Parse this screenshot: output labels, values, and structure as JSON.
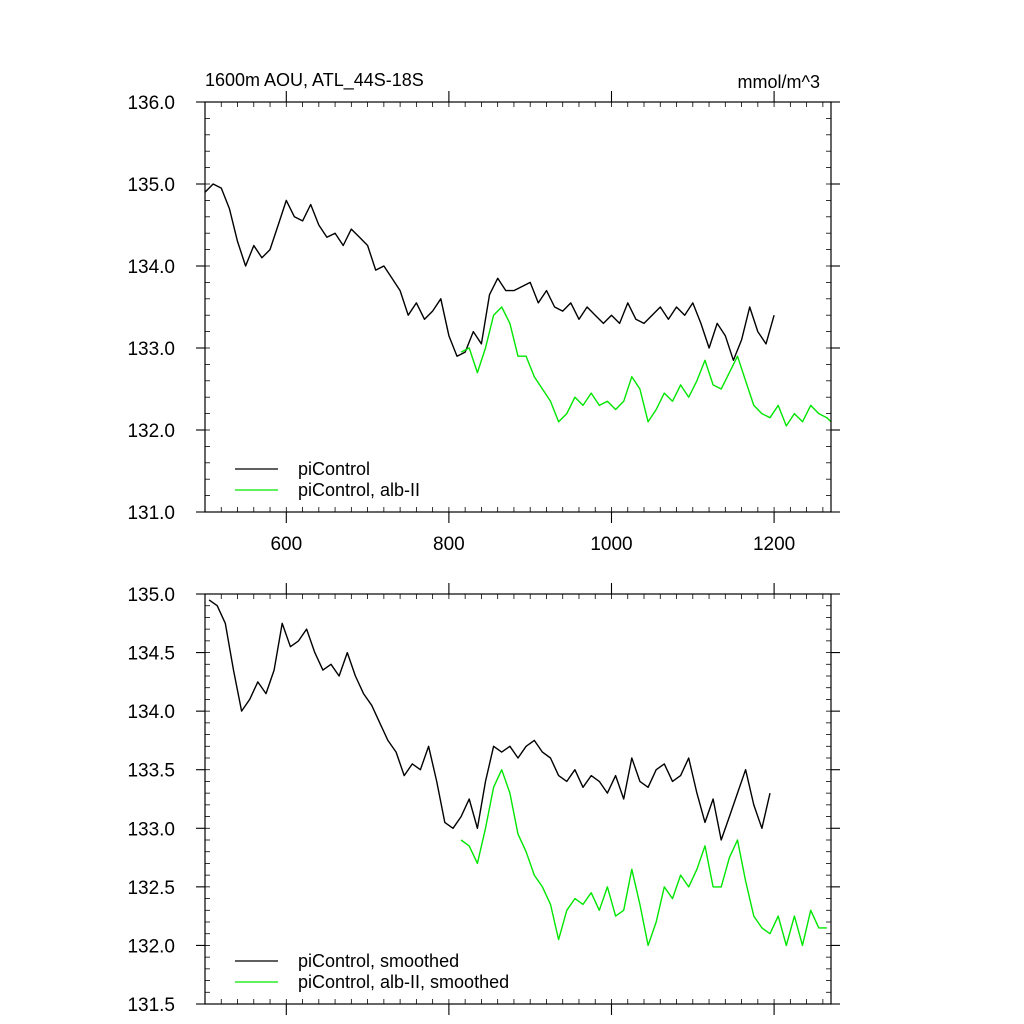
{
  "colors": {
    "black_series": "#000000",
    "green_series": "#00e600",
    "axis": "#000000",
    "background": "#ffffff"
  },
  "chart_data": [
    {
      "type": "line",
      "title": "1600m AOU, ATL_44S-18S",
      "units_label": "mmol/m^3",
      "xlabel": "",
      "ylabel": "",
      "xlim": [
        500,
        1270
      ],
      "ylim": [
        131.0,
        136.0
      ],
      "xticks": [
        600,
        800,
        1000,
        1200
      ],
      "xtick_labels": [
        "600",
        "800",
        "1000",
        "1200"
      ],
      "yticks": [
        131.0,
        132.0,
        133.0,
        134.0,
        135.0,
        136.0
      ],
      "ytick_labels": [
        "131.0",
        "132.0",
        "133.0",
        "134.0",
        "135.0",
        "136.0"
      ],
      "grid": false,
      "legend_position": "bottom-left",
      "series": [
        {
          "name": "piControl",
          "color": "#000000",
          "x": [
            500,
            510,
            520,
            530,
            540,
            550,
            560,
            570,
            580,
            590,
            600,
            610,
            620,
            630,
            640,
            650,
            660,
            670,
            680,
            690,
            700,
            710,
            720,
            730,
            740,
            750,
            760,
            770,
            780,
            790,
            800,
            810,
            820,
            830,
            840,
            850,
            860,
            870,
            880,
            890,
            900,
            910,
            920,
            930,
            940,
            950,
            960,
            970,
            980,
            990,
            1000,
            1010,
            1020,
            1030,
            1040,
            1050,
            1060,
            1070,
            1080,
            1090,
            1100,
            1110,
            1120,
            1130,
            1140,
            1150,
            1160,
            1170,
            1180,
            1190,
            1200
          ],
          "y": [
            134.9,
            135.0,
            134.95,
            134.7,
            134.3,
            134.0,
            134.25,
            134.1,
            134.2,
            134.5,
            134.8,
            134.6,
            134.55,
            134.75,
            134.5,
            134.35,
            134.4,
            134.25,
            134.45,
            134.35,
            134.25,
            133.95,
            134.0,
            133.85,
            133.7,
            133.4,
            133.55,
            133.35,
            133.45,
            133.6,
            133.15,
            132.9,
            132.95,
            133.2,
            133.05,
            133.65,
            133.85,
            133.7,
            133.7,
            133.75,
            133.8,
            133.55,
            133.7,
            133.5,
            133.45,
            133.55,
            133.35,
            133.5,
            133.4,
            133.3,
            133.4,
            133.3,
            133.55,
            133.35,
            133.3,
            133.4,
            133.5,
            133.35,
            133.5,
            133.4,
            133.55,
            133.3,
            133.0,
            133.3,
            133.15,
            132.85,
            133.1,
            133.5,
            133.2,
            133.05,
            133.4
          ],
          "values_note": ""
        },
        {
          "name": "piControl, alb-II",
          "color": "#00e600",
          "x": [
            815,
            825,
            835,
            845,
            855,
            865,
            875,
            885,
            895,
            905,
            915,
            925,
            935,
            945,
            955,
            965,
            975,
            985,
            995,
            1005,
            1015,
            1025,
            1035,
            1045,
            1055,
            1065,
            1075,
            1085,
            1095,
            1105,
            1115,
            1125,
            1135,
            1145,
            1155,
            1165,
            1175,
            1185,
            1195,
            1205,
            1215,
            1225,
            1235,
            1245,
            1255,
            1265,
            1270
          ],
          "y": [
            132.95,
            133.0,
            132.7,
            133.0,
            133.4,
            133.5,
            133.3,
            132.9,
            132.9,
            132.65,
            132.5,
            132.35,
            132.1,
            132.2,
            132.4,
            132.3,
            132.45,
            132.3,
            132.35,
            132.25,
            132.35,
            132.65,
            132.5,
            132.1,
            132.25,
            132.45,
            132.35,
            132.55,
            132.4,
            132.6,
            132.85,
            132.55,
            132.5,
            132.7,
            132.9,
            132.6,
            132.3,
            132.2,
            132.15,
            132.3,
            132.05,
            132.2,
            132.1,
            132.3,
            132.2,
            132.15,
            132.1
          ]
        }
      ]
    },
    {
      "type": "line",
      "title": "",
      "xlabel": "",
      "ylabel": "",
      "xlim": [
        500,
        1270
      ],
      "ylim": [
        131.5,
        135.0
      ],
      "xticks": [
        600,
        800,
        1000,
        1200
      ],
      "yticks": [
        131.5,
        132.0,
        132.5,
        133.0,
        133.5,
        134.0,
        134.5,
        135.0
      ],
      "ytick_labels": [
        "131.5",
        "132.0",
        "132.5",
        "133.0",
        "133.5",
        "134.0",
        "134.5",
        "135.0"
      ],
      "grid": false,
      "legend_position": "bottom-left",
      "series": [
        {
          "name": "piControl, smoothed",
          "color": "#000000",
          "x": [
            505,
            515,
            525,
            535,
            545,
            555,
            565,
            575,
            585,
            595,
            605,
            615,
            625,
            635,
            645,
            655,
            665,
            675,
            685,
            695,
            705,
            715,
            725,
            735,
            745,
            755,
            765,
            775,
            785,
            795,
            805,
            815,
            825,
            835,
            845,
            855,
            865,
            875,
            885,
            895,
            905,
            915,
            925,
            935,
            945,
            955,
            965,
            975,
            985,
            995,
            1005,
            1015,
            1025,
            1035,
            1045,
            1055,
            1065,
            1075,
            1085,
            1095,
            1105,
            1115,
            1125,
            1135,
            1145,
            1155,
            1165,
            1175,
            1185,
            1195
          ],
          "y": [
            134.95,
            134.9,
            134.75,
            134.35,
            134.0,
            134.1,
            134.25,
            134.15,
            134.35,
            134.75,
            134.55,
            134.6,
            134.7,
            134.5,
            134.35,
            134.4,
            134.3,
            134.5,
            134.3,
            134.15,
            134.05,
            133.9,
            133.75,
            133.65,
            133.45,
            133.55,
            133.5,
            133.7,
            133.4,
            133.05,
            133.0,
            133.1,
            133.25,
            133.0,
            133.4,
            133.7,
            133.65,
            133.7,
            133.6,
            133.7,
            133.75,
            133.65,
            133.6,
            133.45,
            133.4,
            133.5,
            133.35,
            133.45,
            133.4,
            133.3,
            133.45,
            133.25,
            133.6,
            133.4,
            133.35,
            133.5,
            133.55,
            133.4,
            133.45,
            133.6,
            133.3,
            133.05,
            133.25,
            132.9,
            133.1,
            133.3,
            133.5,
            133.2,
            133.0,
            133.3
          ]
        },
        {
          "name": "piControl, alb-II, smoothed",
          "color": "#00e600",
          "x": [
            815,
            825,
            835,
            845,
            855,
            865,
            875,
            885,
            895,
            905,
            915,
            925,
            935,
            945,
            955,
            965,
            975,
            985,
            995,
            1005,
            1015,
            1025,
            1035,
            1045,
            1055,
            1065,
            1075,
            1085,
            1095,
            1105,
            1115,
            1125,
            1135,
            1145,
            1155,
            1165,
            1175,
            1185,
            1195,
            1205,
            1215,
            1225,
            1235,
            1245,
            1255,
            1265
          ],
          "y": [
            132.9,
            132.85,
            132.7,
            133.0,
            133.35,
            133.5,
            133.3,
            132.95,
            132.8,
            132.6,
            132.5,
            132.35,
            132.05,
            132.3,
            132.4,
            132.35,
            132.45,
            132.3,
            132.5,
            132.25,
            132.3,
            132.65,
            132.35,
            132.0,
            132.2,
            132.5,
            132.4,
            132.6,
            132.5,
            132.65,
            132.85,
            132.5,
            132.5,
            132.75,
            132.9,
            132.55,
            132.25,
            132.15,
            132.1,
            132.25,
            132.0,
            132.25,
            132.0,
            132.3,
            132.15,
            132.15
          ]
        }
      ]
    }
  ]
}
